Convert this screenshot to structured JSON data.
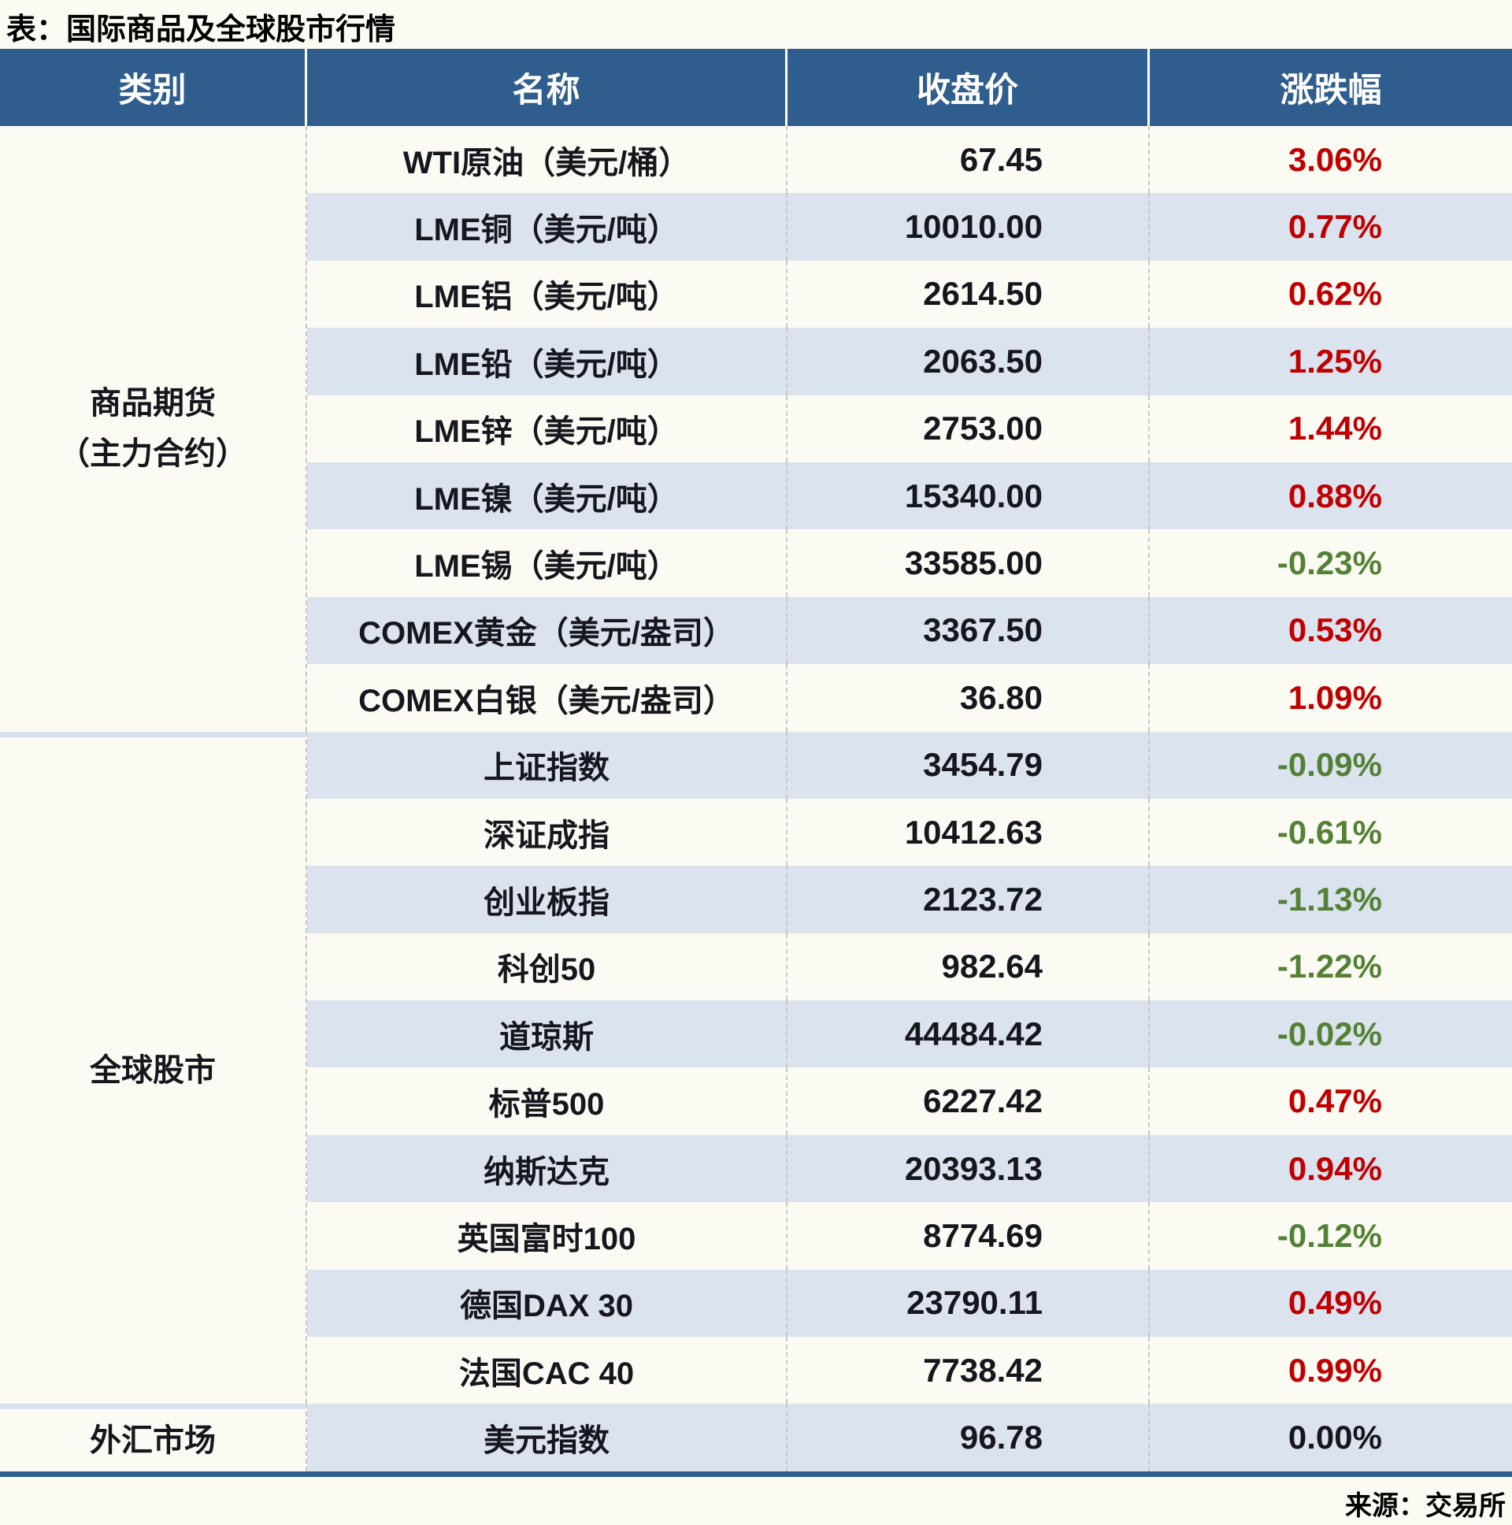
{
  "title": "表：国际商品及全球股市行情",
  "source_note": "来源：交易所",
  "colors": {
    "header_bg": "#2F5D8E",
    "stripe_blue": "#DBE3EF",
    "up_red": "#C00000",
    "down_green": "#538135",
    "flat_black": "#16161E",
    "section_divider": "#D6E0EE",
    "bottom_bar": "#2F5D8E"
  },
  "table": {
    "headers": [
      "类别",
      "名称",
      "收盘价",
      "涨跌幅"
    ],
    "sections": [
      {
        "category": "商品期货\n（主力合约）",
        "rows": [
          {
            "name": "WTI原油（美元/桶）",
            "close": "67.45",
            "change": "3.06%",
            "dir": "up"
          },
          {
            "name": "LME铜（美元/吨）",
            "close": "10010.00",
            "change": "0.77%",
            "dir": "up"
          },
          {
            "name": "LME铝（美元/吨）",
            "close": "2614.50",
            "change": "0.62%",
            "dir": "up"
          },
          {
            "name": "LME铅（美元/吨）",
            "close": "2063.50",
            "change": "1.25%",
            "dir": "up"
          },
          {
            "name": "LME锌（美元/吨）",
            "close": "2753.00",
            "change": "1.44%",
            "dir": "up"
          },
          {
            "name": "LME镍（美元/吨）",
            "close": "15340.00",
            "change": "0.88%",
            "dir": "up"
          },
          {
            "name": "LME锡（美元/吨）",
            "close": "33585.00",
            "change": "-0.23%",
            "dir": "down"
          },
          {
            "name": "COMEX黄金（美元/盎司）",
            "close": "3367.50",
            "change": "0.53%",
            "dir": "up"
          },
          {
            "name": "COMEX白银（美元/盎司）",
            "close": "36.80",
            "change": "1.09%",
            "dir": "up"
          }
        ]
      },
      {
        "category": "全球股市",
        "rows": [
          {
            "name": "上证指数",
            "close": "3454.79",
            "change": "-0.09%",
            "dir": "down"
          },
          {
            "name": "深证成指",
            "close": "10412.63",
            "change": "-0.61%",
            "dir": "down"
          },
          {
            "name": "创业板指",
            "close": "2123.72",
            "change": "-1.13%",
            "dir": "down"
          },
          {
            "name": "科创50",
            "close": "982.64",
            "change": "-1.22%",
            "dir": "down"
          },
          {
            "name": "道琼斯",
            "close": "44484.42",
            "change": "-0.02%",
            "dir": "down"
          },
          {
            "name": "标普500",
            "close": "6227.42",
            "change": "0.47%",
            "dir": "up"
          },
          {
            "name": "纳斯达克",
            "close": "20393.13",
            "change": "0.94%",
            "dir": "up"
          },
          {
            "name": "英国富时100",
            "close": "8774.69",
            "change": "-0.12%",
            "dir": "down"
          },
          {
            "name": "德国DAX 30",
            "close": "23790.11",
            "change": "0.49%",
            "dir": "up"
          },
          {
            "name": "法国CAC 40",
            "close": "7738.42",
            "change": "0.99%",
            "dir": "up"
          }
        ]
      },
      {
        "category": "外汇市场",
        "rows": [
          {
            "name": "美元指数",
            "close": "96.78",
            "change": "0.00%",
            "dir": "flat"
          }
        ]
      }
    ]
  },
  "chart_data": {
    "type": "table",
    "title": "表：国际商品及全球股市行情",
    "columns": [
      "类别",
      "名称",
      "收盘价",
      "涨跌幅"
    ],
    "rows": [
      [
        "商品期货（主力合约）",
        "WTI原油（美元/桶）",
        67.45,
        "3.06%"
      ],
      [
        "商品期货（主力合约）",
        "LME铜（美元/吨）",
        10010.0,
        "0.77%"
      ],
      [
        "商品期货（主力合约）",
        "LME铝（美元/吨）",
        2614.5,
        "0.62%"
      ],
      [
        "商品期货（主力合约）",
        "LME铅（美元/吨）",
        2063.5,
        "1.25%"
      ],
      [
        "商品期货（主力合约）",
        "LME锌（美元/吨）",
        2753.0,
        "1.44%"
      ],
      [
        "商品期货（主力合约）",
        "LME镍（美元/吨）",
        15340.0,
        "0.88%"
      ],
      [
        "商品期货（主力合约）",
        "LME锡（美元/吨）",
        33585.0,
        "-0.23%"
      ],
      [
        "商品期货（主力合约）",
        "COMEX黄金（美元/盎司）",
        3367.5,
        "0.53%"
      ],
      [
        "商品期货（主力合约）",
        "COMEX白银（美元/盎司）",
        36.8,
        "1.09%"
      ],
      [
        "全球股市",
        "上证指数",
        3454.79,
        "-0.09%"
      ],
      [
        "全球股市",
        "深证成指",
        10412.63,
        "-0.61%"
      ],
      [
        "全球股市",
        "创业板指",
        2123.72,
        "-1.13%"
      ],
      [
        "全球股市",
        "科创50",
        982.64,
        "-1.22%"
      ],
      [
        "全球股市",
        "道琼斯",
        44484.42,
        "-0.02%"
      ],
      [
        "全球股市",
        "标普500",
        6227.42,
        "0.47%"
      ],
      [
        "全球股市",
        "纳斯达克",
        20393.13,
        "0.94%"
      ],
      [
        "全球股市",
        "英国富时100",
        8774.69,
        "-0.12%"
      ],
      [
        "全球股市",
        "德国DAX 30",
        23790.11,
        "0.49%"
      ],
      [
        "全球股市",
        "法国CAC 40",
        7738.42,
        "0.99%"
      ],
      [
        "外汇市场",
        "美元指数",
        96.78,
        "0.00%"
      ]
    ],
    "source": "来源：交易所"
  }
}
